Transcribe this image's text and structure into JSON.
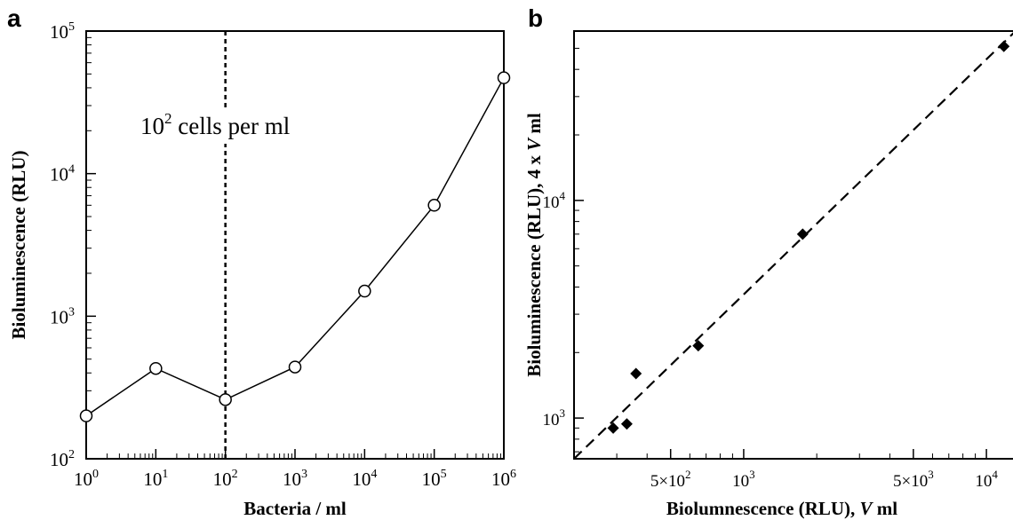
{
  "chart_data": [
    {
      "panel": "a",
      "type": "line",
      "xlabel": "Bacteria / ml",
      "ylabel": "Bioluminescence (RLU)",
      "x_scale": "log",
      "y_scale": "log",
      "xlim": [
        1,
        1000000
      ],
      "ylim": [
        100,
        100000
      ],
      "x_ticks": [
        {
          "value": 1,
          "base": "10",
          "exp": "0"
        },
        {
          "value": 10,
          "base": "10",
          "exp": "1"
        },
        {
          "value": 100,
          "base": "10",
          "exp": "2"
        },
        {
          "value": 1000,
          "base": "10",
          "exp": "3"
        },
        {
          "value": 10000,
          "base": "10",
          "exp": "4"
        },
        {
          "value": 100000,
          "base": "10",
          "exp": "5"
        },
        {
          "value": 1000000,
          "base": "10",
          "exp": "6"
        }
      ],
      "y_ticks": [
        {
          "value": 100,
          "base": "10",
          "exp": "2"
        },
        {
          "value": 1000,
          "base": "10",
          "exp": "3"
        },
        {
          "value": 10000,
          "base": "10",
          "exp": "4"
        },
        {
          "value": 100000,
          "base": "10",
          "exp": "5"
        }
      ],
      "series": [
        {
          "marker": "open-circle",
          "x": [
            1,
            10,
            100,
            1000,
            10000,
            100000,
            1000000
          ],
          "y": [
            200,
            430,
            260,
            440,
            1500,
            6000,
            47000
          ]
        }
      ],
      "reference_line": {
        "x": 100,
        "style": "dotted",
        "label_base": "10",
        "label_exp": "2",
        "label_rest": " cells per ml"
      }
    },
    {
      "panel": "b",
      "type": "scatter",
      "xlabel_parts": [
        "Biolumnescence (RLU), ",
        "V",
        " ml"
      ],
      "ylabel_parts": [
        "Bioluminescence (RLU),  4 x ",
        "V",
        " ml"
      ],
      "x_scale": "log",
      "y_scale": "log",
      "xlim": [
        200,
        14000
      ],
      "ylim": [
        650,
        60000
      ],
      "x_ticks": [
        {
          "value": 500,
          "mant": "5×10",
          "exp": "2"
        },
        {
          "value": 1000,
          "mant": "10",
          "exp": "3"
        },
        {
          "value": 5000,
          "mant": "5×10",
          "exp": "3"
        },
        {
          "value": 10000,
          "mant": "10",
          "exp": "4"
        }
      ],
      "y_ticks": [
        {
          "value": 1000,
          "mant": "10",
          "exp": "3"
        },
        {
          "value": 10000,
          "mant": "10",
          "exp": "4"
        }
      ],
      "series": [
        {
          "marker": "filled-diamond",
          "x": [
            290,
            330,
            360,
            650,
            1750,
            11800
          ],
          "y": [
            900,
            940,
            1600,
            2150,
            7000,
            51000
          ]
        }
      ],
      "fit_line": {
        "style": "dashed",
        "x": [
          200,
          14000
        ],
        "y": [
          650,
          64000
        ]
      }
    }
  ]
}
